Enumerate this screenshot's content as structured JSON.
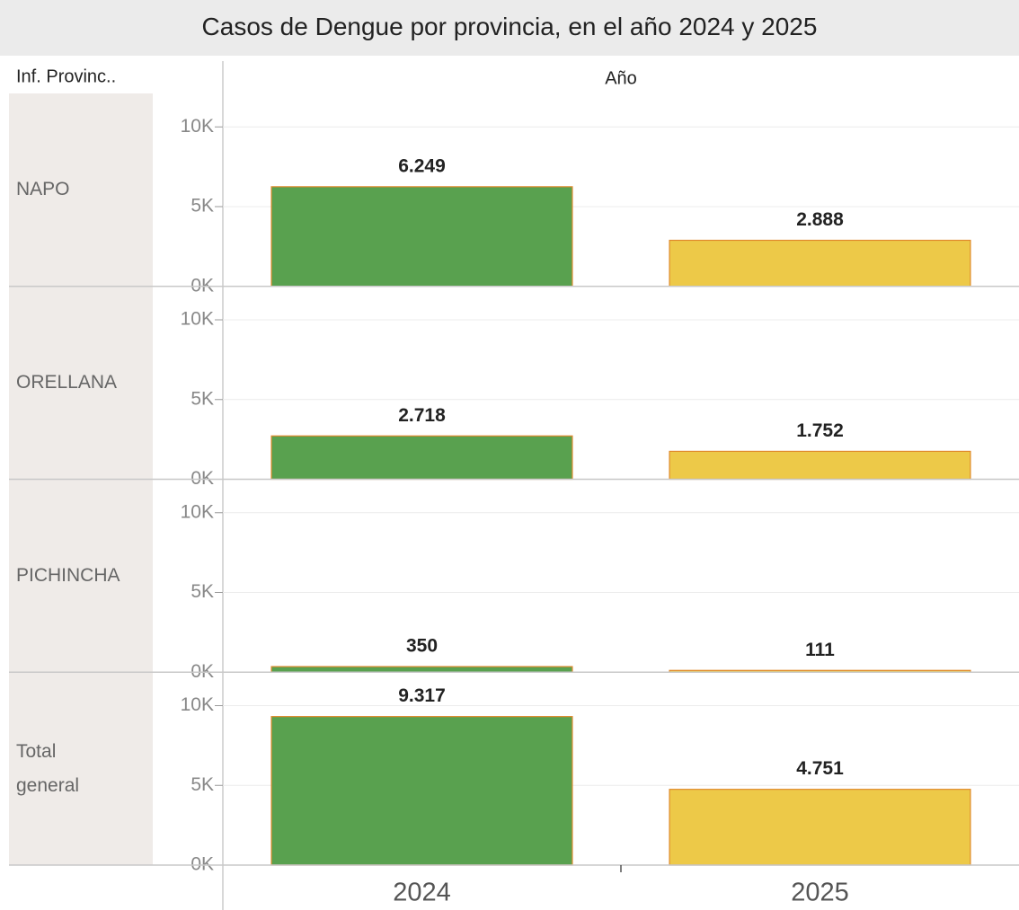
{
  "chart_data": {
    "type": "bar",
    "title": "Casos de Dengue por provincia, en el año 2024 y 2025",
    "row_header": "Inf. Provinc..",
    "column_header": "Año",
    "categories": [
      "2024",
      "2025"
    ],
    "colors": [
      "#59a14f",
      "#edc948"
    ],
    "ylim": [
      0,
      12100
    ],
    "yticks": [
      {
        "value": 0,
        "label": "0K"
      },
      {
        "value": 5000,
        "label": "5K"
      },
      {
        "value": 10000,
        "label": "10K"
      }
    ],
    "grid": true,
    "rows": [
      {
        "name": "NAPO",
        "values": [
          6249,
          2888
        ],
        "value_labels": [
          "6.249",
          "2.888"
        ]
      },
      {
        "name": "ORELLANA",
        "values": [
          2718,
          1752
        ],
        "value_labels": [
          "2.718",
          "1.752"
        ]
      },
      {
        "name": "PICHINCHA",
        "values": [
          350,
          111
        ],
        "value_labels": [
          "350",
          "111"
        ]
      },
      {
        "name": "Total general",
        "values": [
          9317,
          4751
        ],
        "value_labels": [
          "9.317",
          "4.751"
        ]
      }
    ]
  }
}
